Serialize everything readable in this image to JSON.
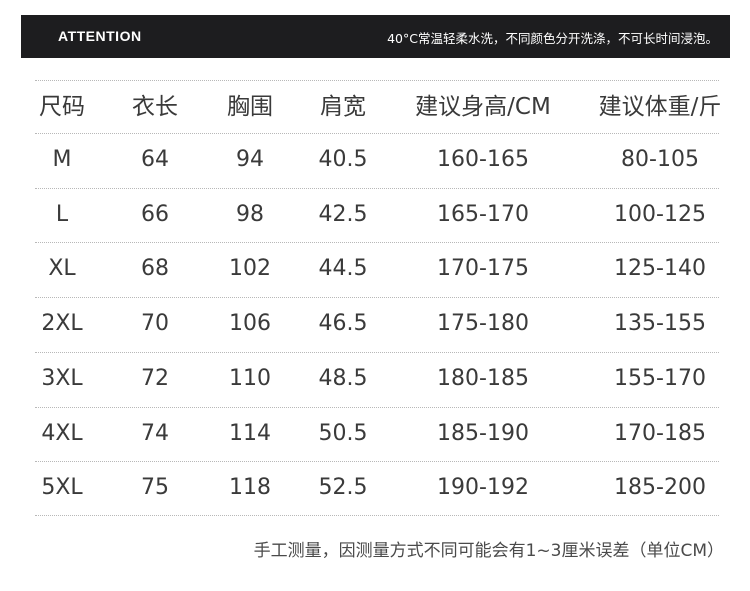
{
  "banner": {
    "title": "ATTENTION",
    "note": "40°C常温轻柔水洗，不同颜色分开洗涤，不可长时间浸泡。"
  },
  "table": {
    "headers": [
      "尺码",
      "衣长",
      "胸围",
      "肩宽",
      "建议身高/CM",
      "建议体重/斤"
    ],
    "rows": [
      [
        "M",
        "64",
        "94",
        "40.5",
        "160-165",
        "80-105"
      ],
      [
        "L",
        "66",
        "98",
        "42.5",
        "165-170",
        "100-125"
      ],
      [
        "XL",
        "68",
        "102",
        "44.5",
        "170-175",
        "125-140"
      ],
      [
        "2XL",
        "70",
        "106",
        "46.5",
        "175-180",
        "135-155"
      ],
      [
        "3XL",
        "72",
        "110",
        "48.5",
        "180-185",
        "155-170"
      ],
      [
        "4XL",
        "74",
        "114",
        "50.5",
        "185-190",
        "170-185"
      ],
      [
        "5XL",
        "75",
        "118",
        "52.5",
        "190-192",
        "185-200"
      ]
    ]
  },
  "footer": "手工测量，因测量方式不同可能会有1~3厘米误差（单位CM）"
}
